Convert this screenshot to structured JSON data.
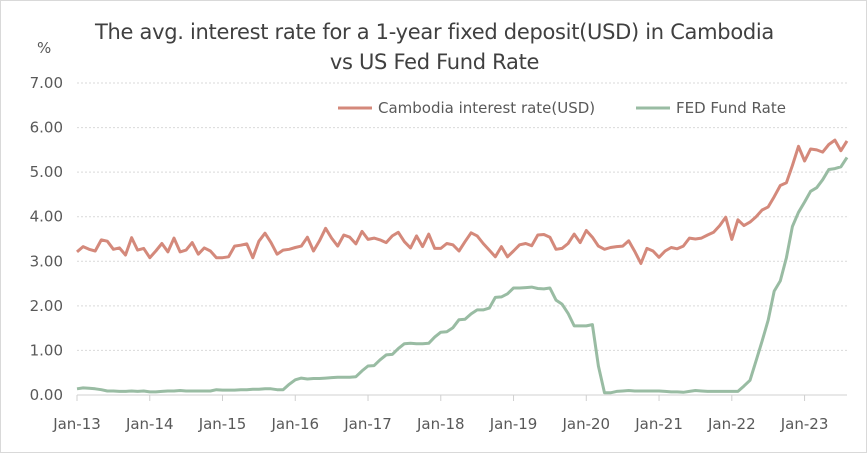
{
  "chart_data": {
    "type": "line",
    "title_line1": "The avg. interest rate for a 1-year fixed deposit(USD) in Cambodia",
    "title_line2": "vs US Fed Fund Rate",
    "ylabel": "%",
    "xlabel": "",
    "ylim": [
      0,
      7
    ],
    "yticks": [
      "0.00",
      "1.00",
      "2.00",
      "3.00",
      "4.00",
      "5.00",
      "6.00",
      "7.00"
    ],
    "xticks": [
      "Jan-13",
      "Jan-14",
      "Jan-15",
      "Jan-16",
      "Jan-17",
      "Jan-18",
      "Jan-19",
      "Jan-20",
      "Jan-21",
      "Jan-22",
      "Jan-23"
    ],
    "x_start": "Jan-13",
    "x_frequency": "monthly",
    "grid": "horizontal",
    "legend_placement": "top-right",
    "series": [
      {
        "name": "Cambodia interest rate(USD)",
        "color": "#d4897b",
        "values": [
          3.21,
          3.33,
          3.27,
          3.23,
          3.48,
          3.45,
          3.27,
          3.3,
          3.14,
          3.53,
          3.25,
          3.29,
          3.08,
          3.23,
          3.4,
          3.21,
          3.52,
          3.21,
          3.25,
          3.42,
          3.16,
          3.3,
          3.23,
          3.08,
          3.08,
          3.1,
          3.34,
          3.36,
          3.39,
          3.08,
          3.45,
          3.63,
          3.42,
          3.16,
          3.25,
          3.27,
          3.31,
          3.34,
          3.54,
          3.23,
          3.46,
          3.74,
          3.52,
          3.34,
          3.59,
          3.54,
          3.39,
          3.67,
          3.49,
          3.52,
          3.48,
          3.42,
          3.57,
          3.65,
          3.44,
          3.3,
          3.57,
          3.33,
          3.61,
          3.29,
          3.29,
          3.4,
          3.37,
          3.23,
          3.44,
          3.64,
          3.57,
          3.4,
          3.25,
          3.1,
          3.33,
          3.1,
          3.23,
          3.37,
          3.4,
          3.35,
          3.59,
          3.6,
          3.54,
          3.27,
          3.29,
          3.4,
          3.61,
          3.42,
          3.69,
          3.54,
          3.34,
          3.27,
          3.31,
          3.33,
          3.34,
          3.46,
          3.22,
          2.95,
          3.29,
          3.23,
          3.09,
          3.23,
          3.31,
          3.28,
          3.34,
          3.52,
          3.5,
          3.52,
          3.59,
          3.65,
          3.8,
          3.99,
          3.49,
          3.93,
          3.8,
          3.88,
          4.0,
          4.15,
          4.22,
          4.45,
          4.7,
          4.76,
          5.15,
          5.58,
          5.25,
          5.52,
          5.5,
          5.45,
          5.62,
          5.72,
          5.48,
          5.7
        ]
      },
      {
        "name": "FED Fund Rate",
        "color": "#99bca3",
        "values": [
          0.14,
          0.16,
          0.15,
          0.14,
          0.12,
          0.09,
          0.09,
          0.08,
          0.08,
          0.09,
          0.08,
          0.09,
          0.07,
          0.07,
          0.08,
          0.09,
          0.09,
          0.1,
          0.09,
          0.09,
          0.09,
          0.09,
          0.09,
          0.12,
          0.11,
          0.11,
          0.11,
          0.12,
          0.12,
          0.13,
          0.13,
          0.14,
          0.14,
          0.12,
          0.12,
          0.24,
          0.34,
          0.38,
          0.36,
          0.37,
          0.37,
          0.38,
          0.39,
          0.4,
          0.4,
          0.4,
          0.41,
          0.54,
          0.65,
          0.66,
          0.79,
          0.9,
          0.91,
          1.04,
          1.15,
          1.16,
          1.15,
          1.15,
          1.16,
          1.3,
          1.41,
          1.42,
          1.51,
          1.69,
          1.7,
          1.82,
          1.91,
          1.91,
          1.95,
          2.19,
          2.2,
          2.27,
          2.4,
          2.4,
          2.41,
          2.42,
          2.39,
          2.38,
          2.4,
          2.13,
          2.04,
          1.83,
          1.55,
          1.55,
          1.55,
          1.58,
          0.65,
          0.05,
          0.05,
          0.08,
          0.09,
          0.1,
          0.09,
          0.09,
          0.09,
          0.09,
          0.09,
          0.08,
          0.07,
          0.07,
          0.06,
          0.08,
          0.1,
          0.09,
          0.08,
          0.08,
          0.08,
          0.08,
          0.08,
          0.08,
          0.2,
          0.33,
          0.77,
          1.21,
          1.68,
          2.33,
          2.56,
          3.08,
          3.78,
          4.1,
          4.33,
          4.57,
          4.65,
          4.83,
          5.06,
          5.08,
          5.12,
          5.33
        ]
      }
    ]
  }
}
